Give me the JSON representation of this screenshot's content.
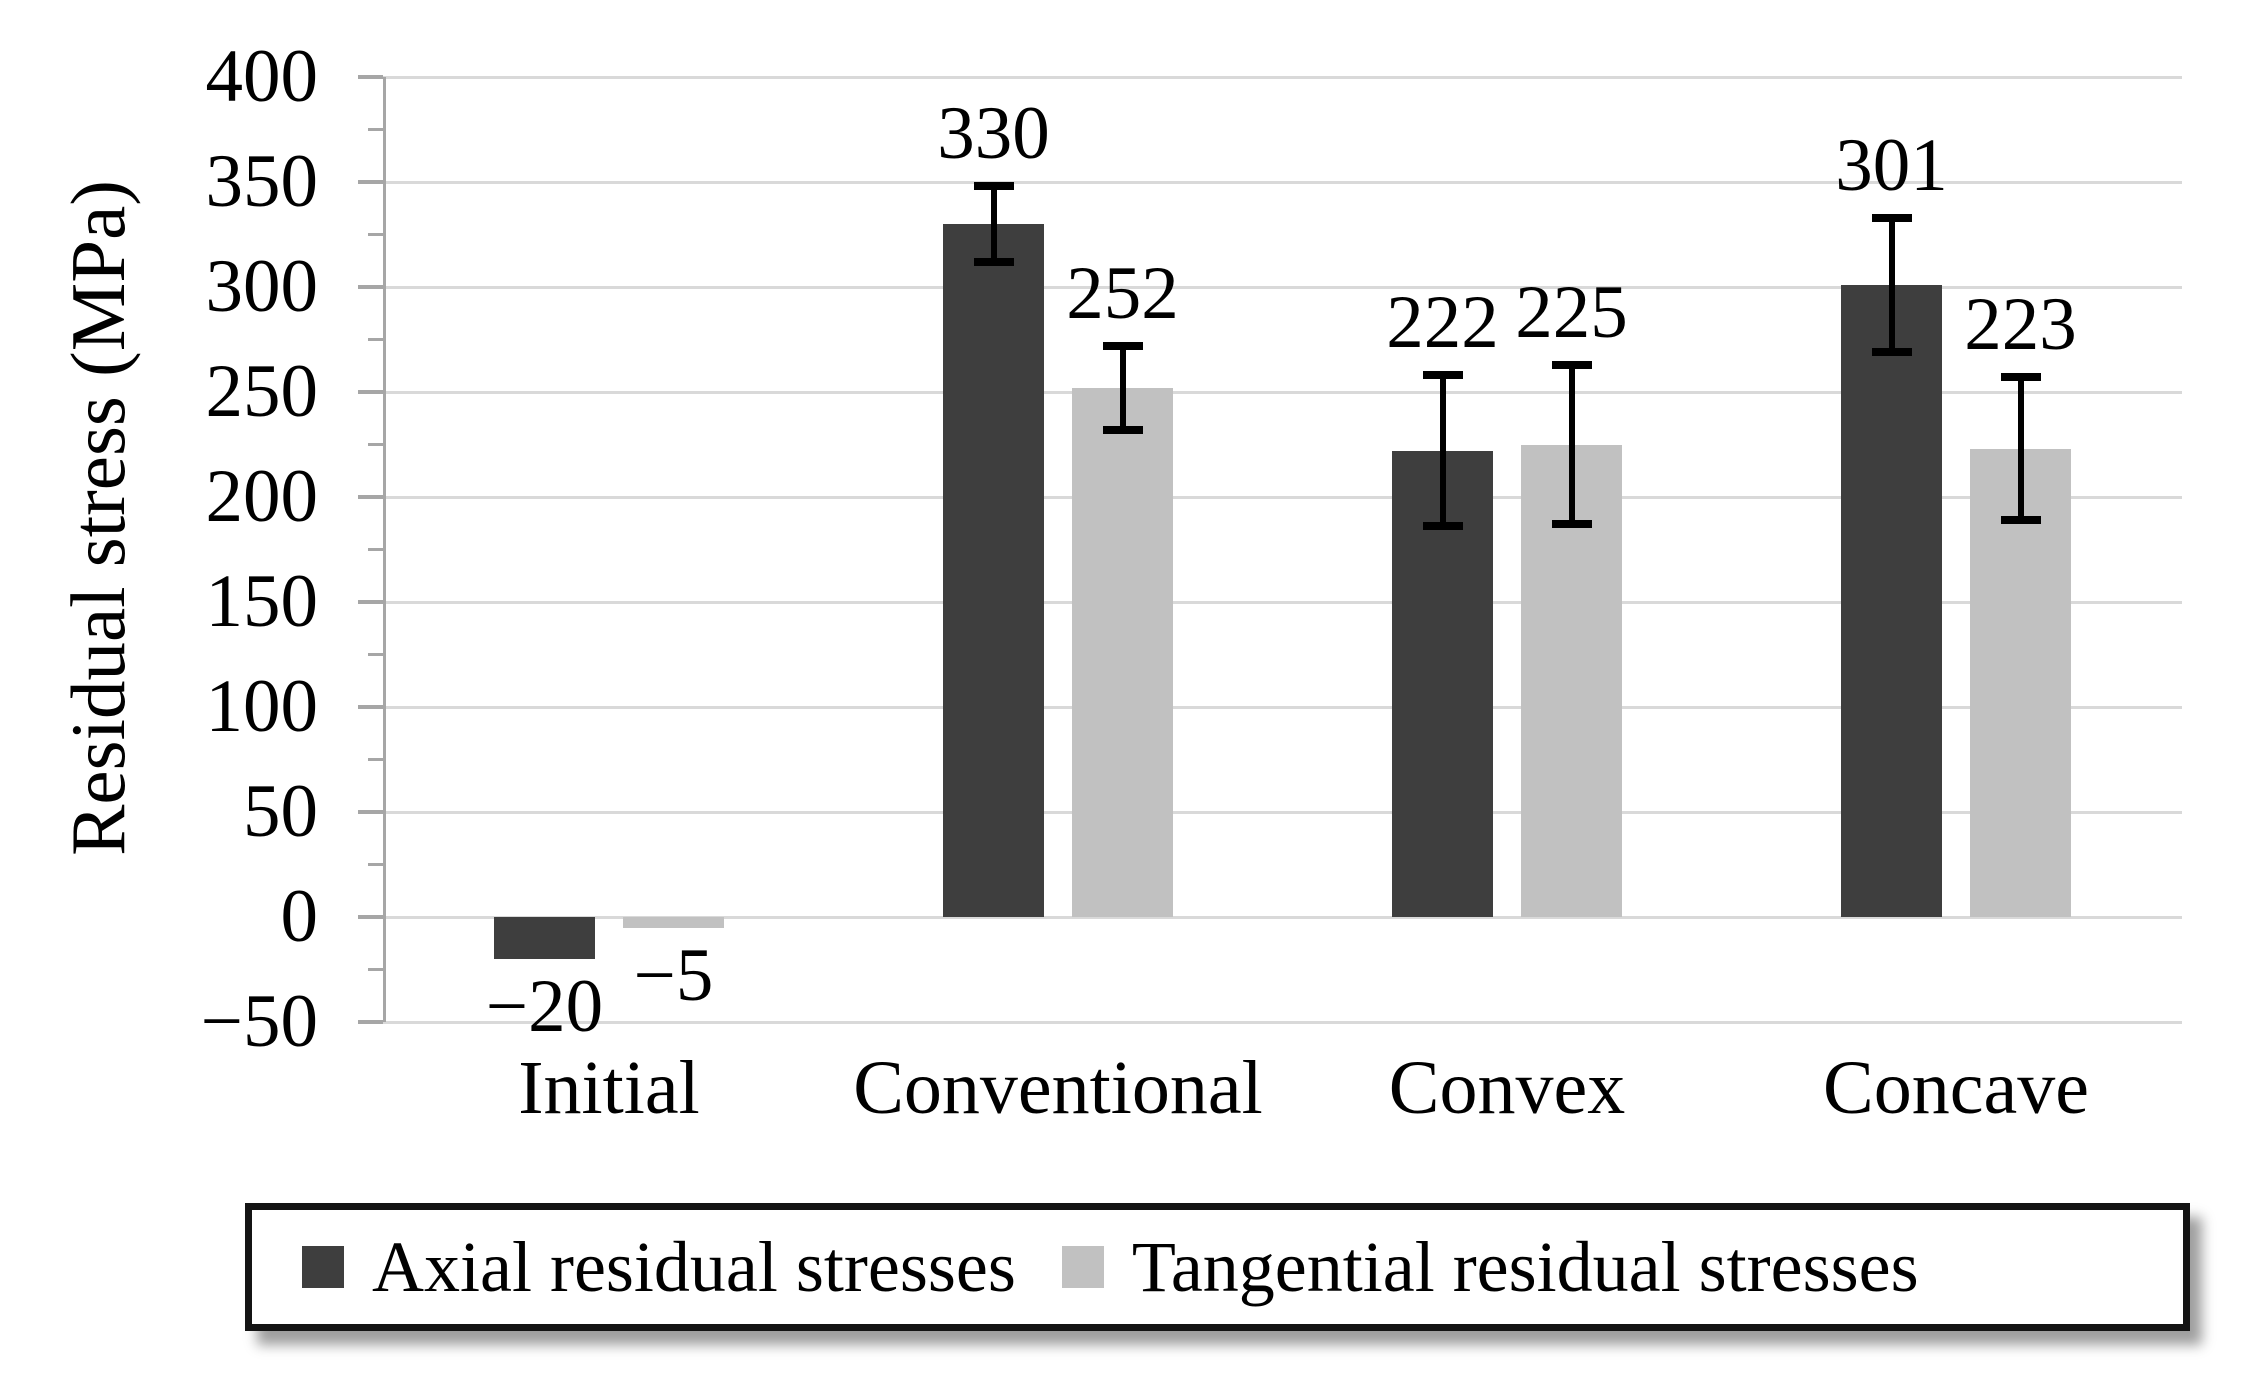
{
  "figure": {
    "background": "#FFFFFF"
  },
  "chart_data": {
    "type": "bar",
    "title": "",
    "ylabel": "Residual stress (MPa)",
    "xlabel": "",
    "categories": [
      "Initial",
      "Conventional",
      "Convex",
      "Concave"
    ],
    "series": [
      {
        "name": "Axial residual stresses",
        "color": "#3E3E3E",
        "values": [
          -20,
          330,
          222,
          301
        ],
        "errors": [
          0,
          18,
          36,
          32
        ],
        "labels": [
          "−20",
          "330",
          "222",
          "301"
        ]
      },
      {
        "name": "Tangential residual stresses",
        "color": "#C1C1C1",
        "values": [
          -5,
          252,
          225,
          223
        ],
        "errors": [
          0,
          20,
          38,
          34
        ],
        "labels": [
          "−5",
          "252",
          "225",
          "223"
        ]
      }
    ],
    "y_axis": {
      "min": -50,
      "max": 400,
      "major_step": 50,
      "minor_step": 25,
      "tick_labels": [
        "400",
        "350",
        "300",
        "250",
        "200",
        "150",
        "100",
        "50",
        "0",
        "−50"
      ]
    },
    "grid": "horizontal-major",
    "legend_position": "bottom",
    "colors": {
      "gridline": "#D9D9D9",
      "axis": "#A6A6A6",
      "error_bar": "#000000",
      "text": "#000000"
    }
  }
}
